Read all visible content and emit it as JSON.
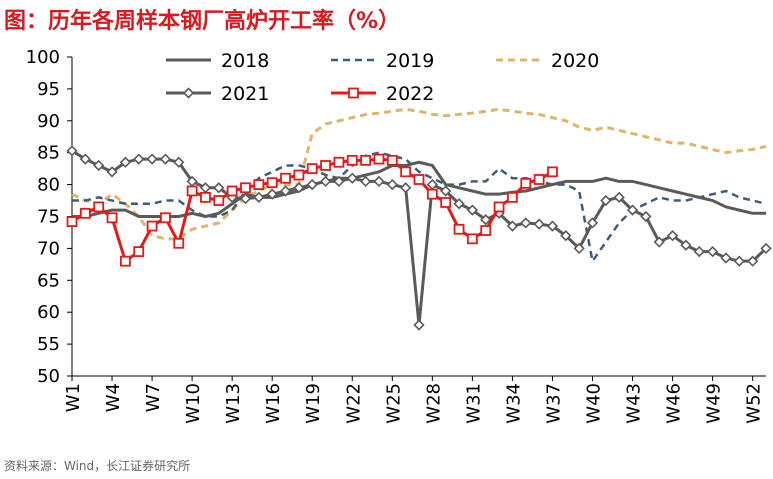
{
  "title": "图：历年各周样本钢厂高炉开工率（%）",
  "source": "资料来源：Wind，长江证券研究所",
  "chart_data": {
    "type": "line",
    "title": "图：历年各周样本钢厂高炉开工率（%）",
    "xlabel": "",
    "ylabel": "",
    "ylim": [
      50,
      100
    ],
    "yticks": [
      50,
      55,
      60,
      65,
      70,
      75,
      80,
      85,
      90,
      95,
      100
    ],
    "xtick_labels": [
      "W1",
      "W4",
      "W7",
      "W10",
      "W13",
      "W16",
      "W19",
      "W22",
      "W25",
      "W28",
      "W31",
      "W34",
      "W37",
      "W40",
      "W43",
      "W46",
      "W49",
      "W52"
    ],
    "x_weeks": [
      1,
      2,
      3,
      4,
      5,
      6,
      7,
      8,
      9,
      10,
      11,
      12,
      13,
      14,
      15,
      16,
      17,
      18,
      19,
      20,
      21,
      22,
      23,
      24,
      25,
      26,
      27,
      28,
      29,
      30,
      31,
      32,
      33,
      34,
      35,
      36,
      37,
      38,
      39,
      40,
      41,
      42,
      43,
      44,
      45,
      46,
      47,
      48,
      49,
      50,
      51,
      52,
      53
    ],
    "series": [
      {
        "name": "2018",
        "color": "#5a5a5a",
        "style": "solid",
        "marker": "none",
        "values": [
          75,
          75,
          75.5,
          76,
          76,
          75,
          75,
          75,
          75,
          75.5,
          75,
          75.5,
          77,
          78.5,
          78,
          78,
          78.5,
          79,
          80,
          80.5,
          81,
          81,
          81.5,
          82,
          83,
          83,
          83.5,
          83,
          80,
          79.5,
          79,
          78.5,
          78.5,
          78.8,
          79,
          79.5,
          80,
          80.5,
          80.5,
          80.5,
          81,
          80.5,
          80.5,
          80,
          79.5,
          79,
          78.5,
          78,
          77.5,
          76.5,
          76,
          75.5,
          75.5
        ]
      },
      {
        "name": "2019",
        "color": "#3e5d7a",
        "style": "dashed",
        "marker": "none",
        "values": [
          77.5,
          77.5,
          78,
          77.5,
          77,
          77,
          77,
          77.5,
          77.5,
          76,
          75,
          75,
          76,
          79,
          81,
          82,
          83,
          83,
          82.5,
          81.5,
          81,
          83,
          84.5,
          85,
          84.5,
          84,
          82,
          81,
          80,
          80,
          80.5,
          80.5,
          82.5,
          81,
          81,
          80.5,
          80,
          80,
          79,
          68,
          71,
          74,
          76,
          77,
          78,
          77.5,
          77.5,
          78,
          78.5,
          79,
          78,
          77.5,
          77
        ]
      },
      {
        "name": "2020",
        "color": "#e0b46a",
        "style": "dashed",
        "marker": "none",
        "values": [
          78.5,
          77.5,
          77,
          78.5,
          77,
          75,
          72,
          71.5,
          71.5,
          73,
          73.5,
          74,
          76,
          78,
          79,
          80,
          80,
          80,
          88,
          89.5,
          90,
          90.5,
          91,
          91.2,
          91.5,
          91.8,
          91.5,
          91,
          90.8,
          91,
          91.2,
          91.5,
          91.8,
          91.5,
          91.2,
          91,
          90.5,
          90,
          89,
          88.5,
          89,
          88.5,
          88,
          87.5,
          87,
          86.5,
          86.5,
          86,
          85.5,
          85,
          85.3,
          85.5,
          86
        ]
      },
      {
        "name": "2021",
        "color": "#5a5a5a",
        "style": "solid",
        "marker": "diamond",
        "values": [
          85.3,
          84,
          83,
          82,
          83.5,
          84,
          84,
          84,
          83.5,
          80.5,
          79.5,
          79.5,
          78,
          77.8,
          78,
          78.5,
          79,
          79.5,
          80,
          80.5,
          80.5,
          81,
          80.5,
          80.5,
          80,
          79.5,
          58,
          80,
          79,
          77,
          76,
          74.5,
          75.5,
          73.5,
          74,
          73.8,
          73.5,
          72,
          70,
          74,
          77.5,
          78,
          76,
          75,
          71,
          72,
          70.5,
          69.5,
          69.5,
          68.5,
          68,
          68,
          70
        ]
      },
      {
        "name": "2022",
        "color": "#e11a1a",
        "style": "solid",
        "marker": "square",
        "values": [
          74.2,
          75.5,
          76.5,
          74.8,
          68,
          69.5,
          73.5,
          74.8,
          70.8,
          79,
          78,
          77.5,
          79,
          79.5,
          80,
          80.3,
          81,
          81.5,
          82.5,
          83,
          83.5,
          83.8,
          83.8,
          84,
          83.8,
          82,
          80.8,
          78.5,
          77.2,
          73,
          71.5,
          72.8,
          76.5,
          78,
          80.2,
          80.8,
          82
        ]
      }
    ],
    "legend": [
      "2018",
      "2019",
      "2020",
      "2021",
      "2022"
    ],
    "grid": false
  }
}
